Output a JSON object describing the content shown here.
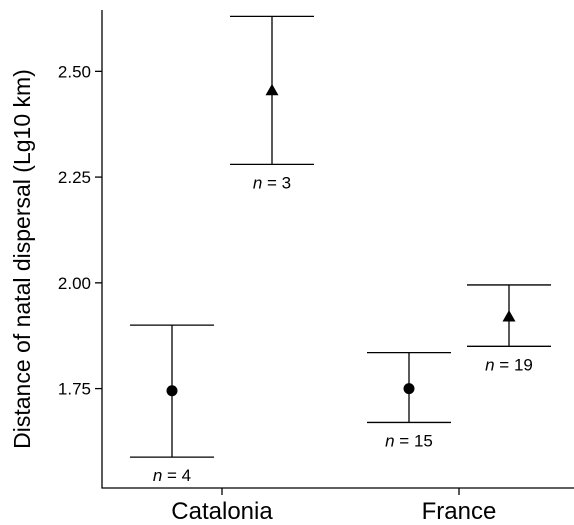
{
  "chart_data": {
    "type": "scatter",
    "ylabel": "Distance of natal dispersal (Lg10 km)",
    "xlabel": "",
    "categories": [
      "Catalonia",
      "France"
    ],
    "ylim": [
      1.515,
      2.645
    ],
    "yticks": [
      1.75,
      2.0,
      2.25,
      2.5
    ],
    "ytick_labels": [
      "1.75",
      "2.00",
      "2.25",
      "2.50"
    ],
    "points": [
      {
        "category": "Catalonia",
        "marker": "circle",
        "mean": 1.745,
        "lower": 1.588,
        "upper": 1.9,
        "n_label": "n = 4",
        "n_label_position": "below"
      },
      {
        "category": "Catalonia",
        "marker": "triangle",
        "mean": 2.455,
        "lower": 2.28,
        "upper": 2.63,
        "n_label": "n = 3",
        "n_label_position": "below"
      },
      {
        "category": "France",
        "marker": "circle",
        "mean": 1.75,
        "lower": 1.67,
        "upper": 1.835,
        "n_label": "n = 15",
        "n_label_position": "below"
      },
      {
        "category": "France",
        "marker": "triangle",
        "mean": 1.92,
        "lower": 1.85,
        "upper": 1.995,
        "n_label": "n = 19",
        "n_label_position": "below"
      }
    ]
  }
}
